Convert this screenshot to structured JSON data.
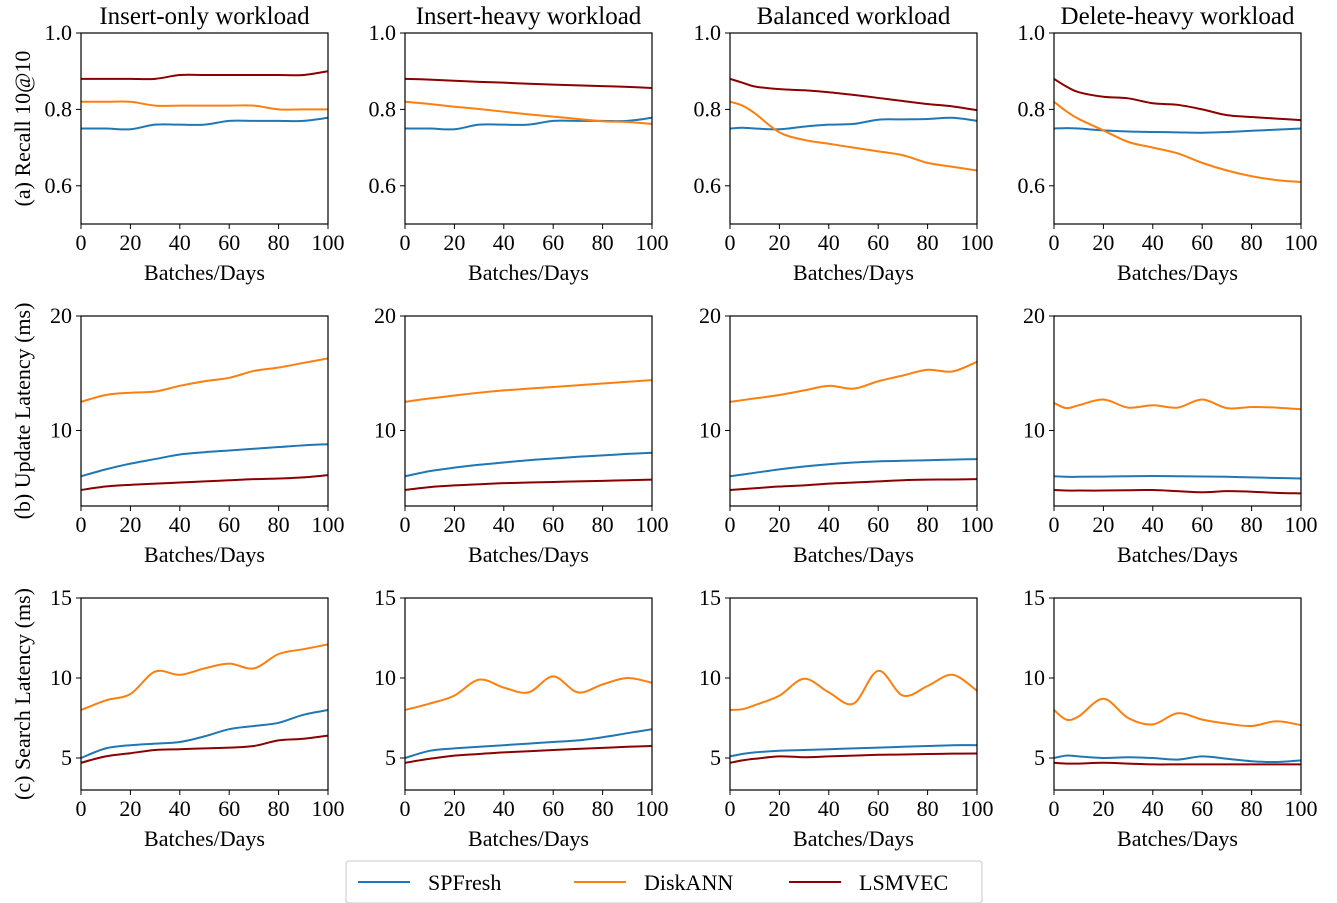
{
  "figure": {
    "legend": [
      {
        "name": "SPFresh",
        "color": "#1f77b4"
      },
      {
        "name": "DiskANN",
        "color": "#ff7f0e"
      },
      {
        "name": "LSMVEC",
        "color": "#8b0000"
      }
    ],
    "legend_placement": "bottom-center",
    "row_ylabels": [
      "(a) Recall 10@10",
      "(b) Update Latency (ms)",
      "(c) Search Latency (ms)"
    ],
    "col_titles": [
      "Insert-only workload",
      "Insert-heavy workload",
      "Balanced workload",
      "Delete-heavy workload"
    ]
  },
  "chart_data": [
    {
      "type": "line",
      "title": "Insert-only workload",
      "xlabel": "Batches/Days",
      "ylabel": "(a) Recall 10@10",
      "xlim": [
        0,
        100
      ],
      "ylim": [
        0.5,
        1.0
      ],
      "xticks": [
        "0",
        "20",
        "40",
        "60",
        "80",
        "100"
      ],
      "yticks": [
        "0.6",
        "0.8",
        "1.0"
      ],
      "grid": false,
      "x": [
        0,
        10,
        20,
        30,
        40,
        50,
        60,
        70,
        80,
        90,
        100
      ],
      "series": [
        {
          "name": "SPFresh",
          "values": [
            0.75,
            0.75,
            0.748,
            0.76,
            0.76,
            0.76,
            0.77,
            0.77,
            0.77,
            0.77,
            0.778
          ]
        },
        {
          "name": "DiskANN",
          "values": [
            0.82,
            0.82,
            0.82,
            0.81,
            0.81,
            0.81,
            0.81,
            0.81,
            0.8,
            0.8,
            0.8
          ]
        },
        {
          "name": "LSMVEC",
          "values": [
            0.88,
            0.88,
            0.88,
            0.88,
            0.89,
            0.89,
            0.89,
            0.89,
            0.89,
            0.89,
            0.9
          ]
        }
      ]
    },
    {
      "type": "line",
      "title": "Insert-heavy workload",
      "xlabel": "Batches/Days",
      "ylabel": "",
      "xlim": [
        0,
        100
      ],
      "ylim": [
        0.5,
        1.0
      ],
      "xticks": [
        "0",
        "20",
        "40",
        "60",
        "80",
        "100"
      ],
      "yticks": [
        "0.6",
        "0.8",
        "1.0"
      ],
      "grid": false,
      "x": [
        0,
        10,
        20,
        30,
        40,
        50,
        60,
        70,
        80,
        90,
        100
      ],
      "series": [
        {
          "name": "SPFresh",
          "values": [
            0.75,
            0.75,
            0.748,
            0.76,
            0.76,
            0.76,
            0.77,
            0.77,
            0.77,
            0.77,
            0.778
          ]
        },
        {
          "name": "DiskANN",
          "values": [
            0.82,
            0.814,
            0.807,
            0.801,
            0.794,
            0.787,
            0.781,
            0.775,
            0.769,
            0.767,
            0.762
          ]
        },
        {
          "name": "LSMVEC",
          "values": [
            0.88,
            0.878,
            0.875,
            0.872,
            0.87,
            0.867,
            0.865,
            0.863,
            0.861,
            0.859,
            0.856
          ]
        }
      ]
    },
    {
      "type": "line",
      "title": "Balanced workload",
      "xlabel": "Batches/Days",
      "ylabel": "",
      "xlim": [
        0,
        100
      ],
      "ylim": [
        0.5,
        1.0
      ],
      "xticks": [
        "0",
        "20",
        "40",
        "60",
        "80",
        "100"
      ],
      "yticks": [
        "0.6",
        "0.8",
        "1.0"
      ],
      "grid": false,
      "x": [
        0,
        5,
        10,
        20,
        30,
        40,
        50,
        60,
        70,
        80,
        90,
        100
      ],
      "series": [
        {
          "name": "SPFresh",
          "values": [
            0.75,
            0.752,
            0.75,
            0.748,
            0.755,
            0.76,
            0.762,
            0.773,
            0.774,
            0.775,
            0.778,
            0.77
          ]
        },
        {
          "name": "DiskANN",
          "values": [
            0.82,
            0.81,
            0.79,
            0.74,
            0.72,
            0.71,
            0.7,
            0.69,
            0.68,
            0.66,
            0.65,
            0.64
          ]
        },
        {
          "name": "LSMVEC",
          "values": [
            0.88,
            0.87,
            0.86,
            0.853,
            0.85,
            0.845,
            0.838,
            0.83,
            0.822,
            0.814,
            0.808,
            0.798
          ]
        }
      ]
    },
    {
      "type": "line",
      "title": "Delete-heavy workload",
      "xlabel": "Batches/Days",
      "ylabel": "",
      "xlim": [
        0,
        100
      ],
      "ylim": [
        0.5,
        1.0
      ],
      "xticks": [
        "0",
        "20",
        "40",
        "60",
        "80",
        "100"
      ],
      "yticks": [
        "0.6",
        "0.8",
        "1.0"
      ],
      "grid": false,
      "x": [
        0,
        5,
        10,
        20,
        30,
        40,
        50,
        60,
        70,
        80,
        90,
        100
      ],
      "series": [
        {
          "name": "SPFresh",
          "values": [
            0.75,
            0.751,
            0.75,
            0.745,
            0.742,
            0.741,
            0.74,
            0.739,
            0.741,
            0.744,
            0.747,
            0.75
          ]
        },
        {
          "name": "DiskANN",
          "values": [
            0.82,
            0.795,
            0.775,
            0.745,
            0.715,
            0.7,
            0.685,
            0.66,
            0.64,
            0.625,
            0.615,
            0.61
          ]
        },
        {
          "name": "LSMVEC",
          "values": [
            0.88,
            0.86,
            0.845,
            0.833,
            0.829,
            0.816,
            0.812,
            0.8,
            0.785,
            0.78,
            0.776,
            0.772
          ]
        }
      ]
    },
    {
      "type": "line",
      "title": "",
      "xlabel": "Batches/Days",
      "ylabel": "(b) Update Latency (ms)",
      "xlim": [
        0,
        100
      ],
      "ylim": [
        3.4,
        20
      ],
      "xticks": [
        "0",
        "20",
        "40",
        "60",
        "80",
        "100"
      ],
      "yticks": [
        "10",
        "20"
      ],
      "grid": false,
      "x": [
        0,
        10,
        20,
        30,
        40,
        50,
        60,
        70,
        80,
        90,
        100
      ],
      "series": [
        {
          "name": "SPFresh",
          "values": [
            6.0,
            6.6,
            7.1,
            7.5,
            7.9,
            8.1,
            8.25,
            8.4,
            8.55,
            8.7,
            8.8
          ]
        },
        {
          "name": "DiskANN",
          "values": [
            12.5,
            13.1,
            13.3,
            13.4,
            13.9,
            14.3,
            14.6,
            15.2,
            15.5,
            15.9,
            16.3
          ]
        },
        {
          "name": "LSMVEC",
          "values": [
            4.8,
            5.1,
            5.25,
            5.35,
            5.45,
            5.55,
            5.65,
            5.75,
            5.8,
            5.9,
            6.1
          ]
        }
      ]
    },
    {
      "type": "line",
      "title": "",
      "xlabel": "Batches/Days",
      "ylabel": "",
      "xlim": [
        0,
        100
      ],
      "ylim": [
        3.4,
        20
      ],
      "xticks": [
        "0",
        "20",
        "40",
        "60",
        "80",
        "100"
      ],
      "yticks": [
        "10",
        "20"
      ],
      "grid": false,
      "x": [
        0,
        10,
        20,
        30,
        40,
        50,
        60,
        70,
        80,
        90,
        100
      ],
      "series": [
        {
          "name": "SPFresh",
          "values": [
            6.0,
            6.45,
            6.75,
            7.0,
            7.2,
            7.4,
            7.55,
            7.7,
            7.82,
            7.95,
            8.05
          ]
        },
        {
          "name": "DiskANN",
          "values": [
            12.5,
            12.8,
            13.05,
            13.3,
            13.5,
            13.65,
            13.8,
            13.95,
            14.1,
            14.25,
            14.4
          ]
        },
        {
          "name": "LSMVEC",
          "values": [
            4.8,
            5.05,
            5.2,
            5.3,
            5.4,
            5.45,
            5.5,
            5.55,
            5.6,
            5.65,
            5.7
          ]
        }
      ]
    },
    {
      "type": "line",
      "title": "",
      "xlabel": "Batches/Days",
      "ylabel": "",
      "xlim": [
        0,
        100
      ],
      "ylim": [
        3.4,
        20
      ],
      "xticks": [
        "0",
        "20",
        "40",
        "60",
        "80",
        "100"
      ],
      "yticks": [
        "10",
        "20"
      ],
      "grid": false,
      "x": [
        0,
        10,
        20,
        30,
        40,
        50,
        60,
        70,
        80,
        90,
        100
      ],
      "series": [
        {
          "name": "SPFresh",
          "values": [
            6.0,
            6.3,
            6.6,
            6.85,
            7.05,
            7.2,
            7.3,
            7.35,
            7.4,
            7.45,
            7.5
          ]
        },
        {
          "name": "DiskANN",
          "values": [
            12.5,
            12.8,
            13.1,
            13.5,
            13.9,
            13.65,
            14.3,
            14.8,
            15.3,
            15.15,
            16.0
          ]
        },
        {
          "name": "LSMVEC",
          "values": [
            4.8,
            4.95,
            5.1,
            5.2,
            5.35,
            5.45,
            5.55,
            5.65,
            5.7,
            5.72,
            5.75
          ]
        }
      ]
    },
    {
      "type": "line",
      "title": "",
      "xlabel": "Batches/Days",
      "ylabel": "",
      "xlim": [
        0,
        100
      ],
      "ylim": [
        3.4,
        20
      ],
      "xticks": [
        "0",
        "20",
        "40",
        "60",
        "80",
        "100"
      ],
      "yticks": [
        "10",
        "20"
      ],
      "grid": false,
      "x": [
        0,
        5,
        10,
        20,
        30,
        40,
        50,
        60,
        70,
        80,
        90,
        100
      ],
      "series": [
        {
          "name": "SPFresh",
          "values": [
            6.0,
            5.95,
            5.95,
            5.97,
            6.0,
            6.02,
            6.0,
            5.98,
            5.95,
            5.9,
            5.85,
            5.8
          ]
        },
        {
          "name": "DiskANN",
          "values": [
            12.4,
            11.95,
            12.2,
            12.7,
            12.0,
            12.2,
            12.0,
            12.7,
            11.95,
            12.05,
            12.0,
            11.85
          ]
        },
        {
          "name": "LSMVEC",
          "values": [
            4.8,
            4.75,
            4.75,
            4.75,
            4.78,
            4.8,
            4.7,
            4.6,
            4.7,
            4.65,
            4.55,
            4.5
          ]
        }
      ]
    },
    {
      "type": "line",
      "title": "",
      "xlabel": "Batches/Days",
      "ylabel": "(c) Search Latency (ms)",
      "xlim": [
        0,
        100
      ],
      "ylim": [
        3,
        15
      ],
      "xticks": [
        "0",
        "20",
        "40",
        "60",
        "80",
        "100"
      ],
      "yticks": [
        "5",
        "10",
        "15"
      ],
      "grid": false,
      "x": [
        0,
        10,
        20,
        30,
        40,
        50,
        60,
        70,
        80,
        90,
        100
      ],
      "series": [
        {
          "name": "SPFresh",
          "values": [
            5.0,
            5.6,
            5.8,
            5.9,
            6.0,
            6.35,
            6.8,
            7.0,
            7.2,
            7.7,
            8.0
          ]
        },
        {
          "name": "DiskANN",
          "values": [
            8.0,
            8.6,
            9.0,
            10.4,
            10.2,
            10.6,
            10.9,
            10.6,
            11.5,
            11.8,
            12.1
          ]
        },
        {
          "name": "LSMVEC",
          "values": [
            4.7,
            5.1,
            5.3,
            5.5,
            5.55,
            5.6,
            5.65,
            5.75,
            6.1,
            6.2,
            6.4
          ]
        }
      ]
    },
    {
      "type": "line",
      "title": "",
      "xlabel": "Batches/Days",
      "ylabel": "",
      "xlim": [
        0,
        100
      ],
      "ylim": [
        3,
        15
      ],
      "xticks": [
        "0",
        "20",
        "40",
        "60",
        "80",
        "100"
      ],
      "yticks": [
        "5",
        "10",
        "15"
      ],
      "grid": false,
      "x": [
        0,
        10,
        20,
        30,
        40,
        50,
        60,
        70,
        80,
        90,
        100
      ],
      "series": [
        {
          "name": "SPFresh",
          "values": [
            5.0,
            5.45,
            5.6,
            5.7,
            5.8,
            5.9,
            6.0,
            6.1,
            6.3,
            6.55,
            6.8
          ]
        },
        {
          "name": "DiskANN",
          "values": [
            8.0,
            8.4,
            8.9,
            9.9,
            9.4,
            9.1,
            10.1,
            9.1,
            9.6,
            10.0,
            9.7
          ]
        },
        {
          "name": "LSMVEC",
          "values": [
            4.7,
            4.95,
            5.15,
            5.25,
            5.35,
            5.42,
            5.5,
            5.57,
            5.63,
            5.7,
            5.75
          ]
        }
      ]
    },
    {
      "type": "line",
      "title": "",
      "xlabel": "Batches/Days",
      "ylabel": "",
      "xlim": [
        0,
        100
      ],
      "ylim": [
        3,
        15
      ],
      "xticks": [
        "0",
        "20",
        "40",
        "60",
        "80",
        "100"
      ],
      "yticks": [
        "5",
        "10",
        "15"
      ],
      "grid": false,
      "x": [
        0,
        5,
        10,
        20,
        30,
        40,
        50,
        60,
        70,
        80,
        90,
        100
      ],
      "series": [
        {
          "name": "SPFresh",
          "values": [
            5.1,
            5.25,
            5.35,
            5.45,
            5.5,
            5.55,
            5.6,
            5.65,
            5.7,
            5.75,
            5.8,
            5.8
          ]
        },
        {
          "name": "DiskANN",
          "values": [
            8.0,
            8.05,
            8.3,
            8.9,
            9.95,
            9.1,
            8.4,
            10.45,
            8.9,
            9.5,
            10.2,
            9.2
          ]
        },
        {
          "name": "LSMVEC",
          "values": [
            4.7,
            4.85,
            4.95,
            5.1,
            5.05,
            5.1,
            5.15,
            5.2,
            5.22,
            5.25,
            5.27,
            5.28
          ]
        }
      ]
    },
    {
      "type": "line",
      "title": "",
      "xlabel": "Batches/Days",
      "ylabel": "",
      "xlim": [
        0,
        100
      ],
      "ylim": [
        3,
        15
      ],
      "xticks": [
        "0",
        "20",
        "40",
        "60",
        "80",
        "100"
      ],
      "yticks": [
        "5",
        "10",
        "15"
      ],
      "grid": false,
      "x": [
        0,
        5,
        10,
        20,
        30,
        40,
        50,
        60,
        70,
        80,
        90,
        100
      ],
      "series": [
        {
          "name": "SPFresh",
          "values": [
            5.0,
            5.15,
            5.1,
            5.0,
            5.05,
            5.0,
            4.9,
            5.1,
            4.95,
            4.8,
            4.75,
            4.85
          ]
        },
        {
          "name": "DiskANN",
          "values": [
            8.0,
            7.4,
            7.6,
            8.7,
            7.5,
            7.1,
            7.8,
            7.4,
            7.15,
            7.0,
            7.3,
            7.05
          ]
        },
        {
          "name": "LSMVEC",
          "values": [
            4.7,
            4.65,
            4.65,
            4.7,
            4.65,
            4.6,
            4.6,
            4.6,
            4.6,
            4.6,
            4.6,
            4.6
          ]
        }
      ]
    }
  ]
}
